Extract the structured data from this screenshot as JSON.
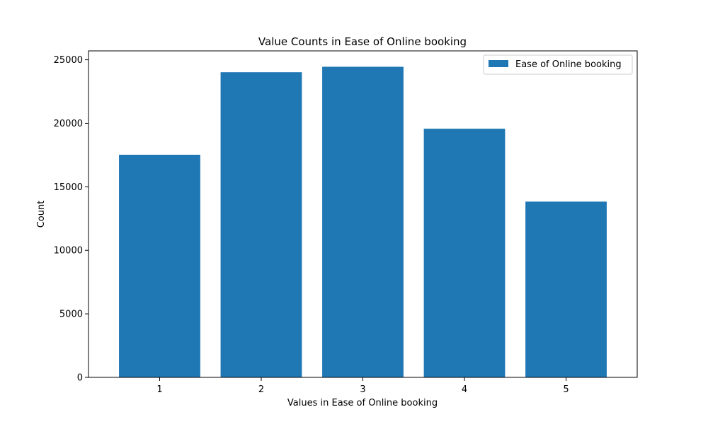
{
  "chart_data": {
    "type": "bar",
    "title": "Value Counts in Ease of Online booking",
    "xlabel": "Values in Ease of Online booking",
    "ylabel": "Count",
    "categories": [
      "1",
      "2",
      "3",
      "4",
      "5"
    ],
    "series": [
      {
        "name": "Ease of Online booking",
        "values": [
          17525,
          24021,
          24449,
          19571,
          13834
        ]
      }
    ],
    "ylim": [
      0,
      25700
    ],
    "yticks": [
      0,
      5000,
      10000,
      15000,
      20000,
      25000
    ],
    "ytick_labels": [
      "0",
      "5000",
      "10000",
      "15000",
      "20000",
      "25000"
    ],
    "grid": false,
    "legend_position": "top-right",
    "bar_color": "#1f77b4"
  }
}
